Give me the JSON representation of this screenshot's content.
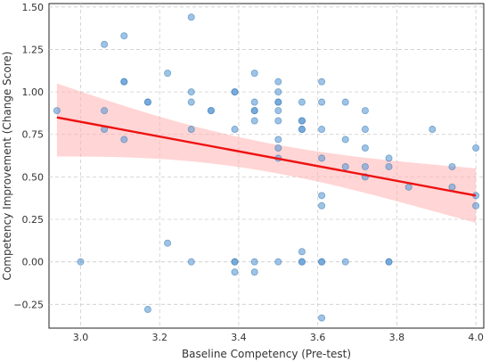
{
  "chart_data": {
    "type": "scatter",
    "xlabel": "Baseline Competency (Pre-test)",
    "ylabel": "Competency Improvement (Change Score)",
    "xlim": [
      2.92,
      4.02
    ],
    "ylim": [
      -0.39,
      1.52
    ],
    "x_ticks": [
      3.0,
      3.2,
      3.4,
      3.6,
      3.8,
      4.0
    ],
    "x_tick_labels": [
      "3.0",
      "3.2",
      "3.4",
      "3.6",
      "3.8",
      "4.0"
    ],
    "y_ticks": [
      -0.25,
      0.0,
      0.25,
      0.5,
      0.75,
      1.0,
      1.25,
      1.5
    ],
    "y_tick_labels": [
      "−0.25",
      "0.00",
      "0.25",
      "0.50",
      "0.75",
      "1.00",
      "1.25",
      "1.50"
    ],
    "grid": true,
    "colors": {
      "points": "#5b9bd5",
      "regression_line": "#ee1111",
      "confidence_band": "#ffb3b3"
    },
    "regression": {
      "x": [
        2.94,
        4.0
      ],
      "y": [
        0.85,
        0.39
      ],
      "ci_lower": [
        0.62,
        0.23
      ],
      "ci_upper": [
        1.05,
        0.55
      ]
    },
    "points": [
      {
        "x": 2.94,
        "y": 0.89
      },
      {
        "x": 3.0,
        "y": 0.0
      },
      {
        "x": 3.06,
        "y": 1.28
      },
      {
        "x": 3.06,
        "y": 0.89
      },
      {
        "x": 3.06,
        "y": 0.78
      },
      {
        "x": 3.11,
        "y": 1.33
      },
      {
        "x": 3.11,
        "y": 1.06
      },
      {
        "x": 3.11,
        "y": 1.06
      },
      {
        "x": 3.11,
        "y": 0.72
      },
      {
        "x": 3.17,
        "y": 0.94
      },
      {
        "x": 3.17,
        "y": 0.94
      },
      {
        "x": 3.17,
        "y": -0.28
      },
      {
        "x": 3.22,
        "y": 1.11
      },
      {
        "x": 3.22,
        "y": 0.11
      },
      {
        "x": 3.28,
        "y": 1.44
      },
      {
        "x": 3.28,
        "y": 1.0
      },
      {
        "x": 3.28,
        "y": 0.94
      },
      {
        "x": 3.28,
        "y": 0.78
      },
      {
        "x": 3.28,
        "y": 0.0
      },
      {
        "x": 3.33,
        "y": 0.89
      },
      {
        "x": 3.33,
        "y": 0.89
      },
      {
        "x": 3.39,
        "y": 1.0
      },
      {
        "x": 3.39,
        "y": 1.0
      },
      {
        "x": 3.39,
        "y": 0.78
      },
      {
        "x": 3.39,
        "y": 0.0
      },
      {
        "x": 3.39,
        "y": 0.0
      },
      {
        "x": 3.39,
        "y": -0.06
      },
      {
        "x": 3.44,
        "y": 1.11
      },
      {
        "x": 3.44,
        "y": 0.94
      },
      {
        "x": 3.44,
        "y": 0.89
      },
      {
        "x": 3.44,
        "y": 0.89
      },
      {
        "x": 3.44,
        "y": 0.83
      },
      {
        "x": 3.44,
        "y": 0.0
      },
      {
        "x": 3.44,
        "y": -0.06
      },
      {
        "x": 3.5,
        "y": 1.06
      },
      {
        "x": 3.5,
        "y": 1.0
      },
      {
        "x": 3.5,
        "y": 0.94
      },
      {
        "x": 3.5,
        "y": 0.94
      },
      {
        "x": 3.5,
        "y": 0.89
      },
      {
        "x": 3.5,
        "y": 0.83
      },
      {
        "x": 3.5,
        "y": 0.72
      },
      {
        "x": 3.5,
        "y": 0.67
      },
      {
        "x": 3.5,
        "y": 0.61
      },
      {
        "x": 3.5,
        "y": 0.0
      },
      {
        "x": 3.56,
        "y": 0.94
      },
      {
        "x": 3.56,
        "y": 0.83
      },
      {
        "x": 3.56,
        "y": 0.83
      },
      {
        "x": 3.56,
        "y": 0.78
      },
      {
        "x": 3.56,
        "y": 0.78
      },
      {
        "x": 3.56,
        "y": 0.06
      },
      {
        "x": 3.56,
        "y": 0.0
      },
      {
        "x": 3.56,
        "y": 0.0
      },
      {
        "x": 3.61,
        "y": 1.06
      },
      {
        "x": 3.61,
        "y": 0.94
      },
      {
        "x": 3.61,
        "y": 0.78
      },
      {
        "x": 3.61,
        "y": 0.61
      },
      {
        "x": 3.61,
        "y": 0.39
      },
      {
        "x": 3.61,
        "y": 0.33
      },
      {
        "x": 3.61,
        "y": 0.0
      },
      {
        "x": 3.61,
        "y": 0.0
      },
      {
        "x": 3.61,
        "y": -0.33
      },
      {
        "x": 3.67,
        "y": 0.94
      },
      {
        "x": 3.67,
        "y": 0.72
      },
      {
        "x": 3.67,
        "y": 0.56
      },
      {
        "x": 3.67,
        "y": 0.0
      },
      {
        "x": 3.72,
        "y": 0.89
      },
      {
        "x": 3.72,
        "y": 0.78
      },
      {
        "x": 3.72,
        "y": 0.67
      },
      {
        "x": 3.72,
        "y": 0.56
      },
      {
        "x": 3.72,
        "y": 0.5
      },
      {
        "x": 3.78,
        "y": 0.61
      },
      {
        "x": 3.78,
        "y": 0.56
      },
      {
        "x": 3.78,
        "y": 0.0
      },
      {
        "x": 3.78,
        "y": 0.0
      },
      {
        "x": 3.83,
        "y": 0.44
      },
      {
        "x": 3.89,
        "y": 0.78
      },
      {
        "x": 3.94,
        "y": 0.56
      },
      {
        "x": 3.94,
        "y": 0.44
      },
      {
        "x": 4.0,
        "y": 0.67
      },
      {
        "x": 4.0,
        "y": 0.39
      },
      {
        "x": 4.0,
        "y": 0.33
      }
    ]
  }
}
